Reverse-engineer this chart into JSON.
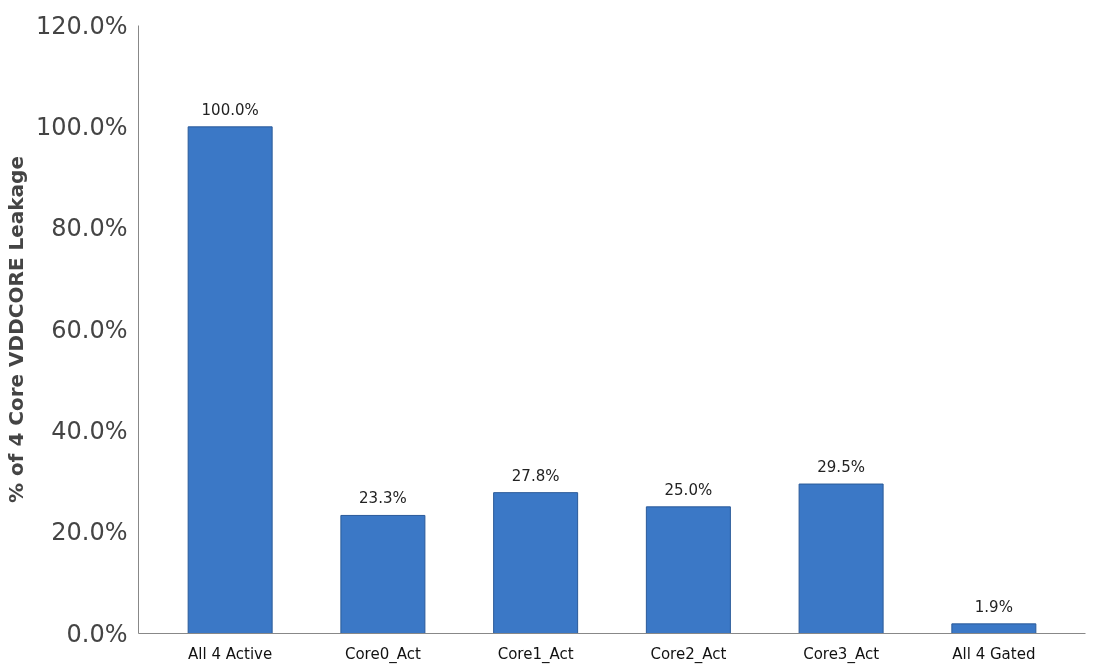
{
  "chart_data": {
    "type": "bar",
    "ylabel": "% of 4 Core VDDCORE Leakage",
    "categories": [
      "All 4 Active",
      "Core0_Act",
      "Core1_Act",
      "Core2_Act",
      "Core3_Act",
      "All 4 Gated"
    ],
    "values": [
      100.0,
      23.3,
      27.8,
      25.0,
      29.5,
      1.9
    ],
    "value_labels": [
      "100.0%",
      "23.3%",
      "27.8%",
      "25.0%",
      "29.5%",
      "1.9%"
    ],
    "color": "#3b78c6",
    "ylim": [
      0,
      120
    ],
    "yticks": [
      {
        "value": 0,
        "label": "0.0%"
      },
      {
        "value": 20,
        "label": "20.0%"
      },
      {
        "value": 40,
        "label": "40.0%"
      },
      {
        "value": 60,
        "label": "60.0%"
      },
      {
        "value": 80,
        "label": "80.0%"
      },
      {
        "value": 100,
        "label": "100.0%"
      },
      {
        "value": 120,
        "label": "120.0%"
      }
    ],
    "grid": false
  }
}
